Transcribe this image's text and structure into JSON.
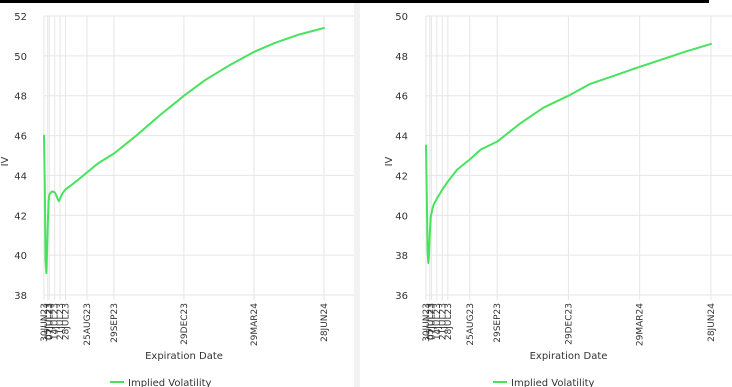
{
  "colors": {
    "series": "#47e35f",
    "grid": "#e6e6e6",
    "text": "#333333"
  },
  "chart_data": [
    {
      "type": "line",
      "xlabel": "Expiration Date",
      "ylabel": "IV",
      "ylim": [
        38,
        52
      ],
      "yticks": [
        38,
        40,
        42,
        44,
        46,
        48,
        50,
        52
      ],
      "grid": true,
      "legend": "bottom-center",
      "legend_label": "Implied Volatility",
      "xticks": [
        {
          "label": "30JUN23",
          "day": -0.1
        },
        {
          "label": "05JUL23",
          "day": 4.9
        },
        {
          "label": "07JUL23",
          "day": 6.9
        },
        {
          "label": "14JUL23",
          "day": 13.9
        },
        {
          "label": "21JUL23",
          "day": 20.9
        },
        {
          "label": "28JUL23",
          "day": 27.9
        },
        {
          "label": "25AUG23",
          "day": 55.9
        },
        {
          "label": "29SEP23",
          "day": 90.9
        },
        {
          "label": "29DEC23",
          "day": 181.9
        },
        {
          "label": "29MAR24",
          "day": 272.9
        },
        {
          "label": "28JUN24",
          "day": 363.9
        }
      ],
      "series": [
        {
          "name": "Implied Volatility",
          "points": [
            [
              0,
              46.0
            ],
            [
              1,
              43.5
            ],
            [
              2,
              39.8
            ],
            [
              3,
              39.1
            ],
            [
              4,
              40.2
            ],
            [
              5,
              41.6
            ],
            [
              6,
              42.7
            ],
            [
              7,
              43.05
            ],
            [
              9,
              43.15
            ],
            [
              11,
              43.2
            ],
            [
              14,
              43.15
            ],
            [
              16,
              43.0
            ],
            [
              18,
              42.8
            ],
            [
              19.5,
              42.7
            ],
            [
              21,
              42.85
            ],
            [
              24,
              43.1
            ],
            [
              28,
              43.3
            ],
            [
              35,
              43.5
            ],
            [
              45,
              43.8
            ],
            [
              56,
              44.15
            ],
            [
              70,
              44.6
            ],
            [
              91,
              45.1
            ],
            [
              120,
              46.0
            ],
            [
              150,
              47.0
            ],
            [
              182,
              48.0
            ],
            [
              210,
              48.8
            ],
            [
              240,
              49.5
            ],
            [
              273,
              50.2
            ],
            [
              300,
              50.65
            ],
            [
              330,
              51.05
            ],
            [
              364,
              51.4
            ]
          ]
        }
      ]
    },
    {
      "type": "line",
      "xlabel": "Expiration Date",
      "ylabel": "IV",
      "ylim": [
        36,
        50
      ],
      "yticks": [
        36,
        38,
        40,
        42,
        44,
        46,
        48,
        50
      ],
      "grid": true,
      "legend": "bottom-center",
      "legend_label": "Implied Volatility",
      "xticks": [
        {
          "label": "30JUN23",
          "day": -0.1
        },
        {
          "label": "05JUL23",
          "day": 4.9
        },
        {
          "label": "07JUL23",
          "day": 6.9
        },
        {
          "label": "14JUL23",
          "day": 13.9
        },
        {
          "label": "21JUL23",
          "day": 20.9
        },
        {
          "label": "28JUL23",
          "day": 27.9
        },
        {
          "label": "25AUG23",
          "day": 55.9
        },
        {
          "label": "29SEP23",
          "day": 90.9
        },
        {
          "label": "29DEC23",
          "day": 181.9
        },
        {
          "label": "29MAR24",
          "day": 272.9
        },
        {
          "label": "28JUN24",
          "day": 363.9
        }
      ],
      "series": [
        {
          "name": "Implied Volatility",
          "points": [
            [
              0,
              43.5
            ],
            [
              1,
              41.0
            ],
            [
              2,
              38.2
            ],
            [
              3,
              37.6
            ],
            [
              4,
              38.1
            ],
            [
              5,
              39.2
            ],
            [
              6,
              39.9
            ],
            [
              8,
              40.3
            ],
            [
              10,
              40.55
            ],
            [
              14,
              40.85
            ],
            [
              18,
              41.1
            ],
            [
              21,
              41.3
            ],
            [
              28,
              41.7
            ],
            [
              40,
              42.3
            ],
            [
              56,
              42.8
            ],
            [
              70,
              43.3
            ],
            [
              91,
              43.7
            ],
            [
              120,
              44.6
            ],
            [
              150,
              45.4
            ],
            [
              182,
              46.0
            ],
            [
              210,
              46.6
            ],
            [
              240,
              47.0
            ],
            [
              273,
              47.45
            ],
            [
              300,
              47.8
            ],
            [
              330,
              48.2
            ],
            [
              364,
              48.6
            ]
          ]
        }
      ]
    }
  ]
}
